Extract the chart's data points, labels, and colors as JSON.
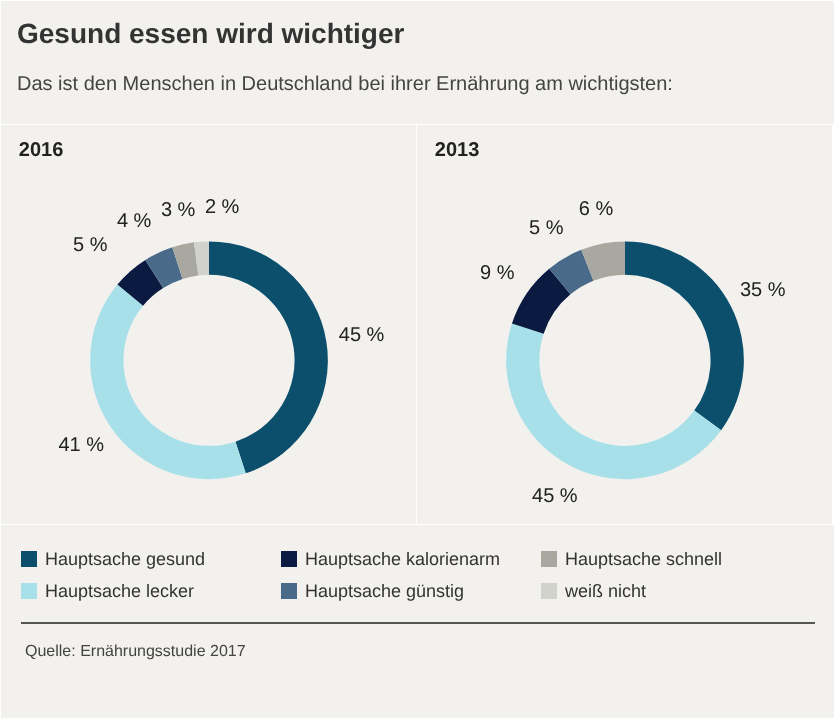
{
  "chart_data": {
    "type": "donut",
    "title": "Gesund essen wird wichtiger",
    "subtitle": "Das ist den Menschen in Deutschland bei ihrer Ernährung am wichtigsten:",
    "annotations": [
      "Quelle: Ernährungsstudie 2017"
    ],
    "legend": "bottom",
    "categories": [
      "Hauptsache gesund",
      "Hauptsache lecker",
      "Hauptsache kalorienarm",
      "Hauptsache günstig",
      "Hauptsache schnell",
      "weiß nicht"
    ],
    "colors": [
      "#0b4f6c",
      "#a8e0ea",
      "#0a1a40",
      "#4a6a8a",
      "#a8a8a0",
      "#d2d2cc"
    ],
    "series": [
      {
        "name": "2016",
        "values": [
          45,
          41,
          5,
          4,
          3,
          2
        ],
        "value_labels": [
          "45 %",
          "41 %",
          "5 %",
          "4 %",
          "3 %",
          "2 %"
        ]
      },
      {
        "name": "2013",
        "values": [
          35,
          45,
          9,
          5,
          6,
          null
        ],
        "value_labels": [
          "35 %",
          "45 %",
          "9 %",
          "5 %",
          "6 %",
          null
        ]
      }
    ]
  }
}
